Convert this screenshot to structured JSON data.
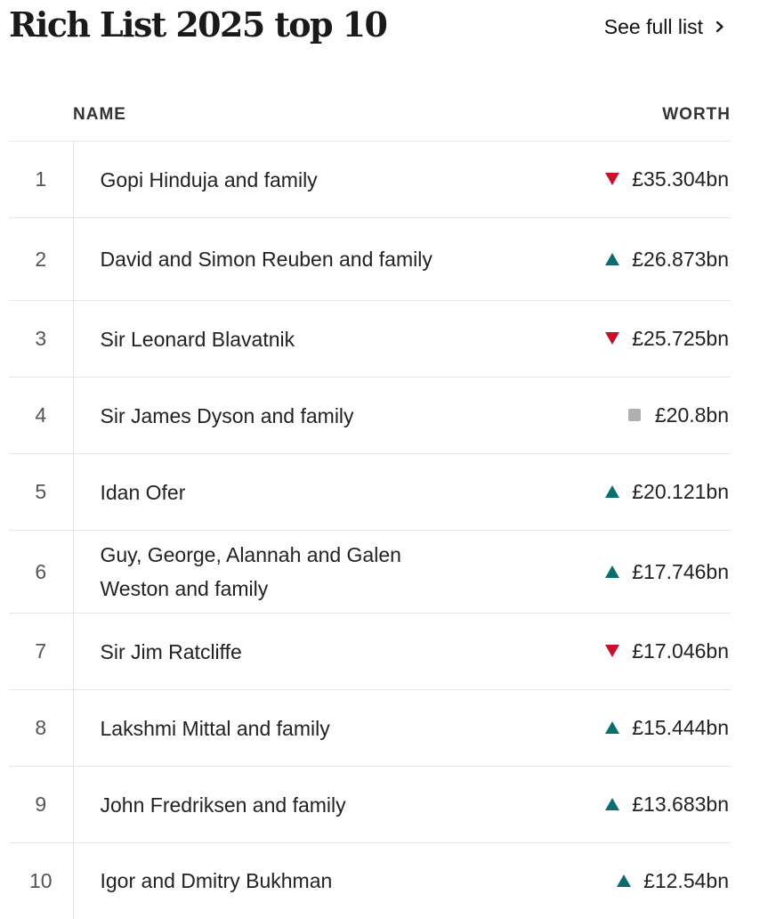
{
  "header": {
    "title": "Rich List 2025 top 10",
    "see_full_list": "See full list"
  },
  "table": {
    "columns": {
      "rank": "",
      "name": "NAME",
      "worth": "WORTH"
    },
    "rows": [
      {
        "rank": "1",
        "name": "Gopi Hinduja and family",
        "worth": "£35.304bn",
        "trend": "down",
        "trend_icon": "triangle-down-icon"
      },
      {
        "rank": "2",
        "name": "David and Simon Reuben and family",
        "worth": "£26.873bn",
        "trend": "up",
        "trend_icon": "triangle-up-icon"
      },
      {
        "rank": "3",
        "name": "Sir Leonard Blavatnik",
        "worth": "£25.725bn",
        "trend": "down",
        "trend_icon": "triangle-down-icon"
      },
      {
        "rank": "4",
        "name": "Sir James Dyson and family",
        "worth": "£20.8bn",
        "trend": "same",
        "trend_icon": "square-icon"
      },
      {
        "rank": "5",
        "name": "Idan Ofer",
        "worth": "£20.121bn",
        "trend": "up",
        "trend_icon": "triangle-up-icon"
      },
      {
        "rank": "6",
        "name": "Guy, George, Alannah and Galen Weston and family",
        "worth": "£17.746bn",
        "trend": "up",
        "trend_icon": "triangle-up-icon"
      },
      {
        "rank": "7",
        "name": "Sir Jim Ratcliffe",
        "worth": "£17.046bn",
        "trend": "down",
        "trend_icon": "triangle-down-icon"
      },
      {
        "rank": "8",
        "name": "Lakshmi Mittal and family",
        "worth": "£15.444bn",
        "trend": "up",
        "trend_icon": "triangle-up-icon"
      },
      {
        "rank": "9",
        "name": "John Fredriksen and family",
        "worth": "£13.683bn",
        "trend": "up",
        "trend_icon": "triangle-up-icon"
      },
      {
        "rank": "10",
        "name": "Igor and Dmitry Bukhman",
        "worth": "£12.54bn",
        "trend": "up",
        "trend_icon": "triangle-up-icon"
      }
    ]
  },
  "colors": {
    "down": "#c8102e",
    "up": "#0a6e6e",
    "same": "#b0b0b0",
    "divider": "#e6e6e6"
  }
}
